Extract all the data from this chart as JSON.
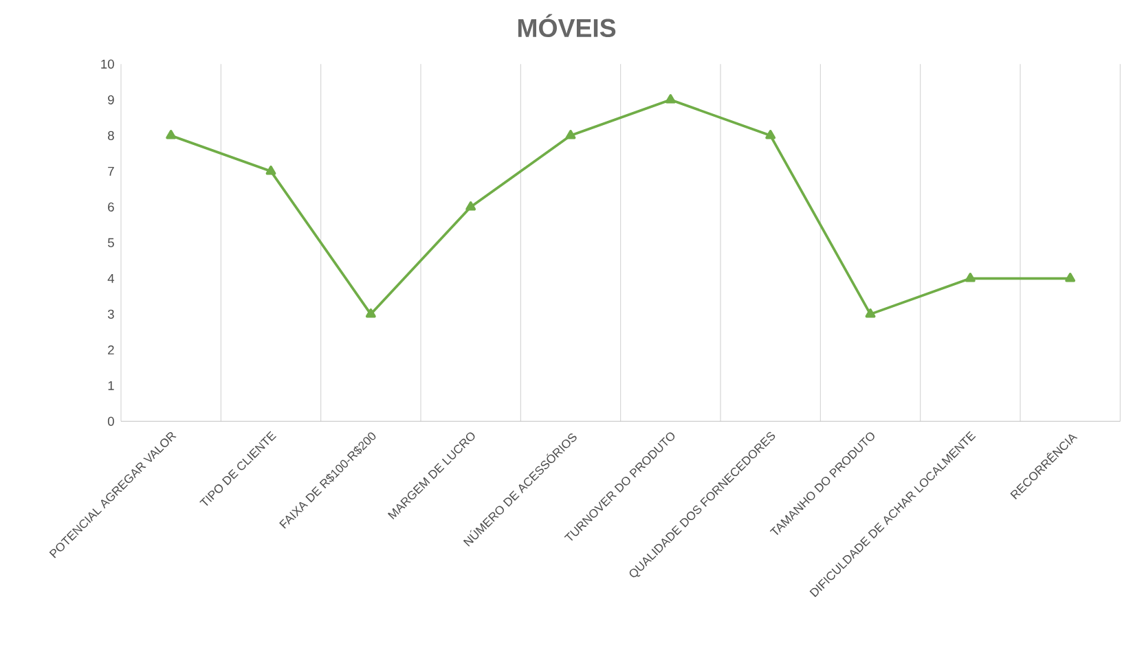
{
  "chart_data": {
    "type": "line",
    "title": "MÓVEIS",
    "categories": [
      "POTENCIAL AGREGAR VALOR",
      "TIPO DE CLIENTE",
      "FAIXA DE R$100-R$200",
      "MARGEM DE LUCRO",
      "NÚMERO DE ACESSÓRIOS",
      "TURNOVER DO PRODUTO",
      "QUALIDADE DOS FORNECEDORES",
      "TAMANHO DO PRODUTO",
      "DIFICULDADE DE ACHAR LOCALMENTE",
      "RECORRÊNCIA"
    ],
    "values": [
      8,
      7,
      3,
      6,
      8,
      9,
      8,
      3,
      4,
      4
    ],
    "color": "#70ad47",
    "marker": "triangle",
    "line_style": "solid",
    "ylim": [
      0,
      10
    ],
    "yticks": [
      0,
      1,
      2,
      3,
      4,
      5,
      6,
      7,
      8,
      9,
      10
    ],
    "grid": "x"
  }
}
